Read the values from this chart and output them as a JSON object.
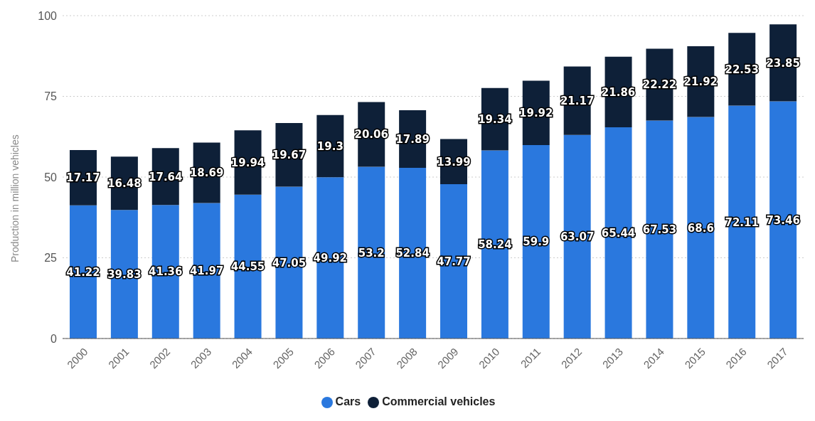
{
  "chart_data": {
    "type": "bar",
    "stacked": true,
    "ylabel": "Production in million vehicles",
    "categories": [
      "2000",
      "2001",
      "2002",
      "2003",
      "2004",
      "2005",
      "2006",
      "2007",
      "2008",
      "2009",
      "2010",
      "2011",
      "2012",
      "2013",
      "2014",
      "2015",
      "2016",
      "2017"
    ],
    "series": [
      {
        "name": "Cars",
        "color": "#2a78de",
        "values": [
          41.22,
          39.83,
          41.36,
          41.97,
          44.55,
          47.05,
          49.92,
          53.2,
          52.84,
          47.77,
          58.24,
          59.9,
          63.07,
          65.44,
          67.53,
          68.6,
          72.11,
          73.46
        ]
      },
      {
        "name": "Commercial vehicles",
        "color": "#0e2038",
        "values": [
          17.17,
          16.48,
          17.64,
          18.69,
          19.94,
          19.67,
          19.3,
          20.06,
          17.89,
          13.99,
          19.34,
          19.92,
          21.17,
          21.86,
          22.22,
          21.92,
          22.53,
          23.85
        ]
      }
    ],
    "ylim": [
      0,
      100
    ],
    "yticks": [
      0,
      25,
      50,
      75,
      100
    ],
    "grid": "y",
    "legend": "bottom",
    "data_labels": true
  }
}
